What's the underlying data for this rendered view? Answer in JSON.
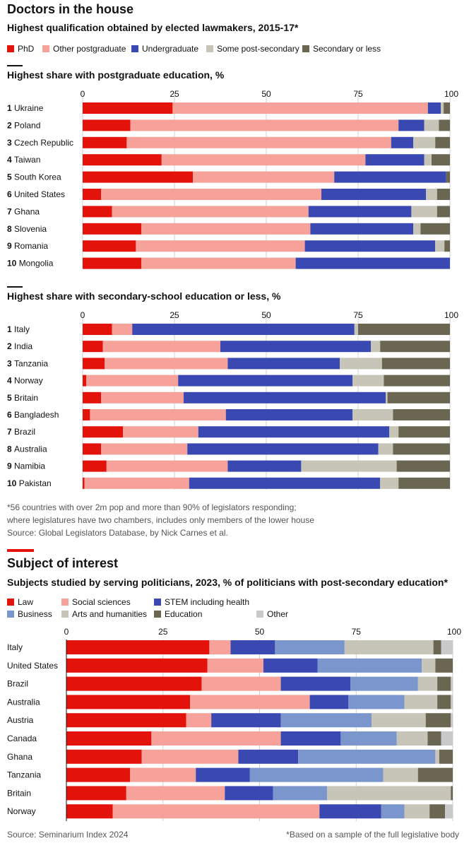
{
  "header": {
    "title": "Doctors in the house",
    "subtitle": "Highest qualification obtained by elected lawmakers, 2015-17*"
  },
  "colors": {
    "phd": "#e3120b",
    "postgrad": "#f6a19a",
    "undergrad": "#3a49b1",
    "somepost": "#c7c5b7",
    "secondary": "#6b6651",
    "law": "#e3120b",
    "social": "#f6a19a",
    "stem": "#3a49b1",
    "business": "#7b95cd",
    "arts": "#c7c5b7",
    "education": "#6b6651",
    "other": "#c9c9c9"
  },
  "legend1": [
    "PhD",
    "Other postgraduate",
    "Undergraduate",
    "Some post-secondary",
    "Secondary or less"
  ],
  "notes": {
    "line1": "*56 countries with over 2m pop and more than 90% of legislators responding;",
    "line2": "where legislatures have two chambers, includes only members of the lower house",
    "source": "Source: Global Legislators Database, by Nick Carnes et al."
  },
  "section2": {
    "title": "Subject of interest",
    "subtitle": "Subjects studied by serving politicians, 2023, % of politicians with post-secondary education*",
    "legend": [
      "Law",
      "Social sciences",
      "STEM including health",
      "Business",
      "Arts and humanities",
      "Education",
      "Other"
    ]
  },
  "footer": {
    "source": "Source: Seminarium Index 2024",
    "note": "*Based on a sample of the full legislative body"
  },
  "chart_data": [
    {
      "type": "bar",
      "orientation": "horizontal-stacked",
      "title": "Highest share with postgraduate education, %",
      "xlim": [
        0,
        100
      ],
      "ticks": [
        0,
        25,
        50,
        75,
        100
      ],
      "segments": [
        "PhD",
        "Other postgraduate",
        "Undergraduate",
        "Some post-secondary",
        "Secondary or less"
      ],
      "rows": [
        {
          "rank": "1",
          "label": "Ukraine",
          "values": [
            24.5,
            69.5,
            3.5,
            0.8,
            1.7
          ]
        },
        {
          "rank": "2",
          "label": "Poland",
          "values": [
            13,
            73,
            7,
            4,
            3
          ]
        },
        {
          "rank": "3",
          "label": "Czech Republic",
          "values": [
            12,
            72,
            6,
            6,
            4
          ]
        },
        {
          "rank": "4",
          "label": "Taiwan",
          "values": [
            21.5,
            55.5,
            16,
            2,
            5
          ]
        },
        {
          "rank": "5",
          "label": "South Korea",
          "values": [
            30,
            38.5,
            30.5,
            0,
            1
          ]
        },
        {
          "rank": "6",
          "label": "United States",
          "values": [
            5,
            60,
            28.5,
            3,
            3.5
          ]
        },
        {
          "rank": "7",
          "label": "Ghana",
          "values": [
            8,
            53.5,
            28,
            7,
            3.5
          ]
        },
        {
          "rank": "8",
          "label": "Slovenia",
          "values": [
            16,
            46,
            28,
            2,
            8
          ]
        },
        {
          "rank": "9",
          "label": "Romania",
          "values": [
            14.5,
            46,
            35.5,
            2.5,
            1.5
          ]
        },
        {
          "rank": "10",
          "label": "Mongolia",
          "values": [
            16,
            42,
            42,
            0,
            0
          ]
        }
      ]
    },
    {
      "type": "bar",
      "orientation": "horizontal-stacked",
      "title": "Highest share with secondary-school education or less, %",
      "xlim": [
        0,
        100
      ],
      "ticks": [
        0,
        25,
        50,
        75,
        100
      ],
      "segments": [
        "PhD",
        "Other postgraduate",
        "Undergraduate",
        "Some post-secondary",
        "Secondary or less"
      ],
      "rows": [
        {
          "rank": "1",
          "label": "Italy",
          "values": [
            8,
            5.5,
            60.5,
            1,
            25
          ]
        },
        {
          "rank": "2",
          "label": "India",
          "values": [
            5.5,
            32,
            41,
            2.5,
            19
          ]
        },
        {
          "rank": "3",
          "label": "Tanzania",
          "values": [
            6,
            33.5,
            30.5,
            11.5,
            18.5
          ]
        },
        {
          "rank": "4",
          "label": "Norway",
          "values": [
            1,
            25,
            47.5,
            8.5,
            18
          ]
        },
        {
          "rank": "5",
          "label": "Britain",
          "values": [
            5,
            22.5,
            55,
            0.5,
            17
          ]
        },
        {
          "rank": "6",
          "label": "Bangladesh",
          "values": [
            2,
            37,
            34.5,
            11,
            15.5
          ]
        },
        {
          "rank": "7",
          "label": "Brazil",
          "values": [
            11,
            20.5,
            52,
            2.5,
            14
          ]
        },
        {
          "rank": "8",
          "label": "Australia",
          "values": [
            5,
            23.5,
            52,
            4,
            15.5
          ]
        },
        {
          "rank": "9",
          "label": "Namibia",
          "values": [
            6.5,
            33,
            20,
            26,
            14.5
          ]
        },
        {
          "rank": "10",
          "label": "Pakistan",
          "values": [
            0.5,
            28.5,
            52,
            5,
            14
          ]
        }
      ]
    },
    {
      "type": "bar",
      "orientation": "horizontal-stacked",
      "title": "Subjects studied by serving politicians, 2023, % of politicians with post-secondary education*",
      "xlim": [
        0,
        100
      ],
      "ticks": [
        0,
        25,
        50,
        75,
        100
      ],
      "segments": [
        "Law",
        "Social sciences",
        "STEM including health",
        "Business",
        "Arts and humanities",
        "Education",
        "Other"
      ],
      "rows": [
        {
          "rank": "",
          "label": "Italy",
          "values": [
            37,
            5.5,
            11.5,
            18,
            23,
            2,
            3
          ]
        },
        {
          "rank": "",
          "label": "United States",
          "values": [
            36.5,
            14.5,
            14,
            27,
            3.5,
            4.5,
            0
          ]
        },
        {
          "rank": "",
          "label": "Brazil",
          "values": [
            35,
            20.5,
            18,
            17.5,
            5,
            3.5,
            1
          ]
        },
        {
          "rank": "",
          "label": "Australia",
          "values": [
            32,
            31,
            10,
            14.5,
            8.5,
            3.5,
            1
          ]
        },
        {
          "rank": "",
          "label": "Austria",
          "values": [
            31,
            6.5,
            18,
            23.5,
            14,
            6.5,
            0.5
          ]
        },
        {
          "rank": "",
          "label": "Canada",
          "values": [
            22,
            33.5,
            15.5,
            14.5,
            8,
            3.5,
            3
          ]
        },
        {
          "rank": "",
          "label": "Ghana",
          "values": [
            19.5,
            25,
            15.5,
            35.5,
            1,
            5,
            0.5
          ]
        },
        {
          "rank": "",
          "label": "Tanzania",
          "values": [
            16.5,
            17,
            14,
            34.5,
            9,
            9,
            0
          ]
        },
        {
          "rank": "",
          "label": "Britain",
          "values": [
            15.5,
            25.5,
            12.5,
            14,
            32,
            0.5,
            0
          ]
        },
        {
          "rank": "",
          "label": "Norway",
          "values": [
            12,
            53.5,
            16,
            6,
            6.5,
            4,
            2
          ]
        }
      ]
    }
  ]
}
